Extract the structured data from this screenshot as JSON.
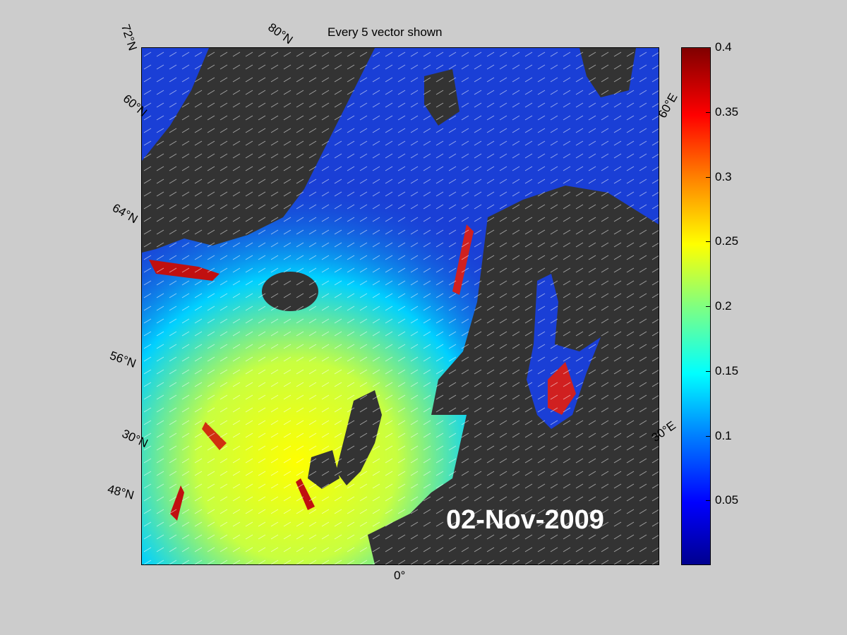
{
  "map": {
    "title": "Every 5 vector shown",
    "date": "02-Nov-2009",
    "latitude_labels": [
      "72°N",
      "60°N",
      "64°N",
      "56°N",
      "30°N",
      "48°N"
    ],
    "top_labels": [
      "80°N"
    ],
    "longitude_labels": [
      "0°",
      "30°E",
      "60°E"
    ],
    "colorbar": {
      "ticks": [
        "0.4",
        "0.35",
        "0.3",
        "0.25",
        "0.2",
        "0.15",
        "0.1",
        "0.05"
      ],
      "min": 0,
      "max": 0.4,
      "colormap": "jet"
    },
    "colors": {
      "land": "#333333",
      "ocean_low": "#1a3fd6",
      "ocean_high": "#ffff00",
      "background": "#cccccc"
    }
  }
}
